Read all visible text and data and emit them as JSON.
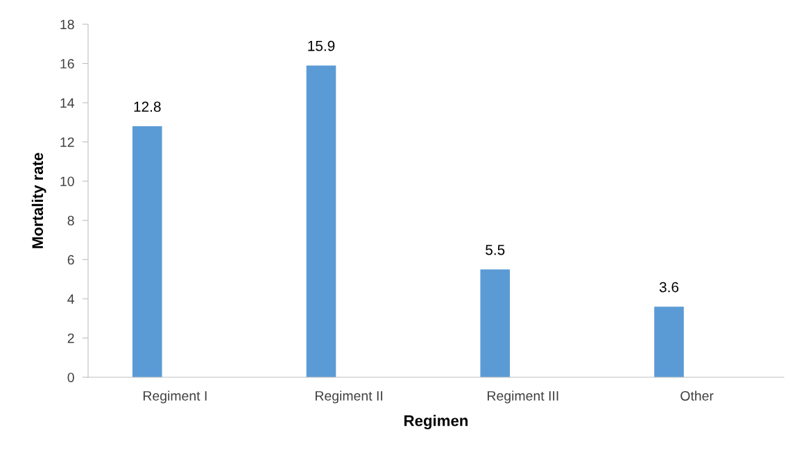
{
  "chart_data": {
    "type": "bar",
    "xlabel": "Regimen",
    "ylabel": "Mortality rate",
    "categories": [
      "Regiment I",
      "Regiment II",
      "Regiment III",
      "Other"
    ],
    "values": [
      12.8,
      15.9,
      5.5,
      3.6
    ],
    "color": "#5b9bd5",
    "ylim": [
      0,
      18
    ],
    "yticks": [
      0,
      2,
      4,
      6,
      8,
      10,
      12,
      14,
      16,
      18
    ],
    "grid": false,
    "data_labels": true
  }
}
